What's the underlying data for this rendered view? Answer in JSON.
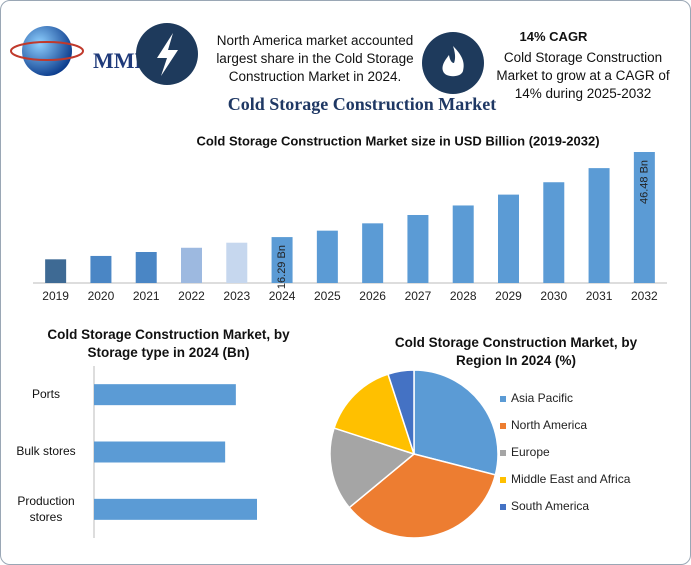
{
  "header": {
    "logo": "MMR",
    "note_left": "North America market accounted largest share in the Cold Storage Construction Market in 2024.",
    "note_right_title": "14% CAGR",
    "note_right": "Cold Storage Construction Market to grow at a CAGR of 14% during 2025-2032",
    "title": "Cold Storage Construction Market"
  },
  "chart_data": [
    {
      "type": "bar",
      "title": "Cold Storage Construction Market size in USD Billion (2019-2032)",
      "categories": [
        "2019",
        "2020",
        "2021",
        "2022",
        "2023",
        "2024",
        "2025",
        "2026",
        "2027",
        "2028",
        "2029",
        "2030",
        "2031",
        "2032"
      ],
      "values": [
        8.4,
        9.6,
        11.0,
        12.5,
        14.3,
        16.29,
        18.57,
        21.17,
        24.13,
        27.51,
        31.36,
        35.75,
        40.76,
        46.48
      ],
      "value_labels": [
        null,
        null,
        null,
        null,
        null,
        "16.29 Bn",
        null,
        null,
        null,
        null,
        null,
        null,
        null,
        "46.48 Bn"
      ],
      "colors": [
        "#3e6a94",
        "#4a86c5",
        "#4a86c5",
        "#9db9e0",
        "#c6d7ee",
        "#5b9bd5",
        "#5b9bd5",
        "#5b9bd5",
        "#5b9bd5",
        "#5b9bd5",
        "#5b9bd5",
        "#5b9bd5",
        "#5b9bd5",
        "#5b9bd5"
      ]
    },
    {
      "type": "hbar",
      "title": "Cold Storage Construction Market, by Storage type in 2024 (Bn)",
      "categories": [
        "Ports",
        "Bulk stores",
        "Production stores"
      ],
      "values": [
        5.3,
        4.9,
        6.09
      ],
      "color": "#5b9bd5"
    },
    {
      "type": "pie",
      "title": "Cold Storage Construction Market, by Region In 2024 (%)",
      "categories": [
        "Asia Pacific",
        "North America",
        "Europe",
        "Middle East and Africa",
        "South America"
      ],
      "values": [
        29,
        35,
        16,
        15,
        5
      ],
      "colors": [
        "#5b9bd5",
        "#ed7d31",
        "#a5a5a5",
        "#ffc000",
        "#4472c4"
      ]
    }
  ]
}
